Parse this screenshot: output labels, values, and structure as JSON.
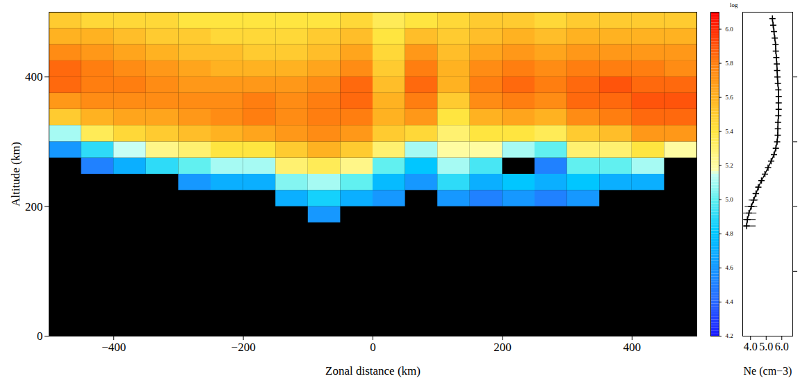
{
  "chart_data": {
    "type": "heatmap",
    "xlabel": "Zonal distance (km)",
    "ylabel": "Altitude (km)",
    "xlim": [
      -500,
      500
    ],
    "xticks": [
      -400,
      -200,
      0,
      200,
      400
    ],
    "ylim": [
      0,
      500
    ],
    "yticks": [
      0,
      200,
      400
    ],
    "x": [
      -475,
      -425,
      -375,
      -325,
      -275,
      -225,
      -175,
      -125,
      -75,
      -25,
      25,
      75,
      125,
      175,
      225,
      275,
      325,
      375,
      425,
      475
    ],
    "y": [
      187.5,
      212.5,
      237.5,
      262.5,
      287.5,
      312.5,
      337.5,
      362.5,
      387.5,
      412.5,
      437.5,
      462.5,
      487.5
    ],
    "values": [
      [
        null,
        null,
        null,
        null,
        null,
        null,
        null,
        null,
        4.6,
        null,
        null,
        null,
        null,
        null,
        null,
        null,
        null,
        null,
        null,
        null
      ],
      [
        null,
        null,
        null,
        null,
        null,
        null,
        null,
        4.7,
        4.85,
        4.7,
        4.6,
        null,
        4.6,
        4.5,
        4.6,
        4.5,
        4.6,
        null,
        null,
        null
      ],
      [
        null,
        null,
        null,
        null,
        4.6,
        4.7,
        4.7,
        5.05,
        5.1,
        5.0,
        4.75,
        4.6,
        4.9,
        4.7,
        4.8,
        4.7,
        4.8,
        4.7,
        4.7,
        null
      ],
      [
        null,
        4.5,
        4.7,
        4.9,
        5.0,
        5.1,
        5.1,
        5.3,
        5.35,
        5.25,
        5.0,
        4.8,
        5.1,
        4.95,
        null,
        4.5,
        5.0,
        5.0,
        5.1,
        null
      ],
      [
        4.6,
        4.9,
        5.15,
        5.25,
        5.3,
        5.4,
        5.4,
        5.5,
        5.6,
        5.5,
        5.3,
        5.1,
        5.2,
        5.2,
        5.1,
        5.0,
        5.3,
        5.3,
        5.4,
        5.2
      ],
      [
        5.1,
        5.35,
        5.45,
        5.5,
        5.55,
        5.6,
        5.65,
        5.7,
        5.75,
        5.7,
        5.5,
        5.45,
        5.3,
        5.4,
        5.4,
        5.35,
        5.5,
        5.55,
        5.7,
        5.7
      ],
      [
        5.5,
        5.6,
        5.65,
        5.65,
        5.7,
        5.75,
        5.8,
        5.75,
        5.8,
        5.8,
        5.6,
        5.7,
        5.4,
        5.6,
        5.65,
        5.6,
        5.75,
        5.8,
        5.85,
        5.85
      ],
      [
        5.7,
        5.75,
        5.75,
        5.75,
        5.75,
        5.75,
        5.8,
        5.75,
        5.8,
        5.85,
        5.6,
        5.8,
        5.5,
        5.75,
        5.8,
        5.75,
        5.85,
        5.85,
        5.9,
        5.9
      ],
      [
        5.85,
        5.8,
        5.8,
        5.75,
        5.7,
        5.7,
        5.7,
        5.7,
        5.75,
        5.85,
        5.55,
        5.85,
        5.6,
        5.8,
        5.85,
        5.8,
        5.85,
        5.9,
        5.85,
        5.85
      ],
      [
        5.85,
        5.8,
        5.75,
        5.7,
        5.65,
        5.6,
        5.6,
        5.6,
        5.65,
        5.75,
        5.5,
        5.8,
        5.6,
        5.75,
        5.8,
        5.75,
        5.8,
        5.8,
        5.8,
        5.75
      ],
      [
        5.75,
        5.7,
        5.65,
        5.6,
        5.55,
        5.55,
        5.5,
        5.5,
        5.55,
        5.65,
        5.45,
        5.7,
        5.55,
        5.65,
        5.7,
        5.65,
        5.7,
        5.7,
        5.7,
        5.7
      ],
      [
        5.6,
        5.6,
        5.55,
        5.5,
        5.5,
        5.45,
        5.45,
        5.45,
        5.5,
        5.55,
        5.4,
        5.55,
        5.5,
        5.55,
        5.6,
        5.55,
        5.6,
        5.6,
        5.6,
        5.6
      ],
      [
        5.5,
        5.45,
        5.45,
        5.45,
        5.4,
        5.4,
        5.4,
        5.4,
        5.4,
        5.45,
        5.35,
        5.4,
        5.45,
        5.5,
        5.5,
        5.45,
        5.5,
        5.5,
        5.5,
        5.5
      ]
    ],
    "colorbar": {
      "range": [
        4.2,
        6.1
      ],
      "ticks": [
        4.2,
        4.4,
        4.6,
        4.8,
        5,
        5.2,
        5.4,
        5.6,
        5.8,
        6
      ],
      "label": "log"
    },
    "profile": {
      "type": "line",
      "xlabel": "Ne (cm−3)",
      "xlim": [
        3.5,
        6.7
      ],
      "xticks": [
        4,
        5,
        6
      ],
      "ylim": [
        0,
        500
      ],
      "yticks": [
        100,
        200,
        300,
        400
      ],
      "tick_labels": "x",
      "marker": "plus",
      "altitude": [
        170,
        180,
        190,
        200,
        210,
        220,
        230,
        240,
        250,
        260,
        270,
        280,
        290,
        300,
        310,
        320,
        330,
        340,
        350,
        360,
        370,
        380,
        390,
        400,
        410,
        420,
        430,
        440,
        450,
        460,
        470,
        480,
        490
      ],
      "values": [
        3.75,
        3.8,
        3.9,
        4.05,
        4.2,
        4.35,
        4.5,
        4.7,
        4.92,
        5.12,
        5.32,
        5.5,
        5.62,
        5.7,
        5.74,
        5.75,
        5.76,
        5.78,
        5.8,
        5.8,
        5.8,
        5.78,
        5.75,
        5.72,
        5.7,
        5.68,
        5.65,
        5.62,
        5.6,
        5.55,
        5.5,
        5.45,
        5.4
      ],
      "errors": [
        0.6,
        0.55,
        0.5,
        0.4,
        0.3,
        0.2,
        0.15,
        0.1,
        0.08,
        0.05,
        0.05,
        0.05,
        0.05,
        0.05,
        0.05,
        0.05,
        0.05,
        0.05,
        0.05,
        0.05,
        0.05,
        0.05,
        0.05,
        0.05,
        0.05,
        0.05,
        0.05,
        0.05,
        0.05,
        0.05,
        0.05,
        0.05,
        0.05
      ]
    }
  }
}
